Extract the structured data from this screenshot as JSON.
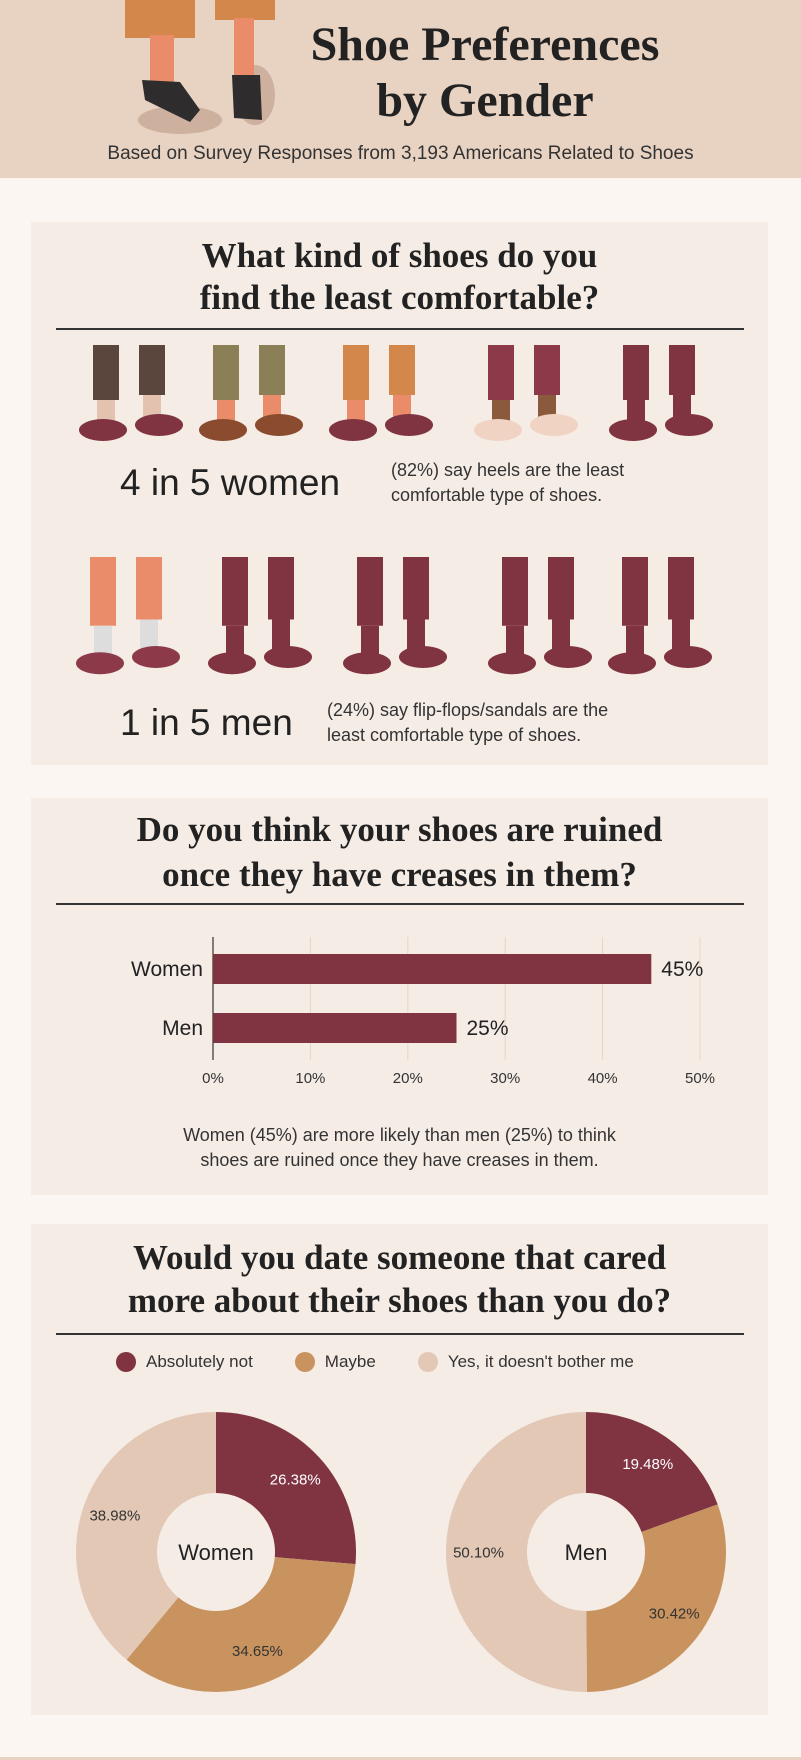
{
  "header": {
    "title_line1": "Shoe Preferences",
    "title_line2": "by Gender",
    "subtitle": "Based on Survey Responses from 3,193 Americans Related to Shoes"
  },
  "colors": {
    "burgundy": "#803341",
    "tan": "#C9935F",
    "light": "#E2C8B5",
    "card": "#F5ECE6",
    "page": "#FBF6F2",
    "header": "#E8D3C3"
  },
  "section1": {
    "title_line1": "What kind of shoes do you",
    "title_line2": "find the least comfortable?",
    "women": {
      "stat": "4 in 5 women",
      "desc_line1": "(82%) say heels are the least",
      "desc_line2": "comfortable type of shoes."
    },
    "men": {
      "stat": "1 in 5 men",
      "desc_line1": "(24%) say flip-flops/sandals are the",
      "desc_line2": "least comfortable type of shoes."
    }
  },
  "section2": {
    "title_line1": "Do you think your shoes are ruined",
    "title_line2": "once they have creases in them?",
    "caption_line1": "Women (45%) are more likely than men (25%) to think",
    "caption_line2": "shoes are ruined once they have creases in them."
  },
  "section3": {
    "title_line1": "Would you date someone that cared",
    "title_line2": "more about their shoes than you do?"
  },
  "chart_data": [
    {
      "type": "bar",
      "orientation": "horizontal",
      "categories": [
        "Women",
        "Men"
      ],
      "values": [
        45,
        25
      ],
      "data_labels": [
        "45%",
        "25%"
      ],
      "xlim": [
        0,
        50
      ],
      "ticks": [
        "0%",
        "10%",
        "20%",
        "30%",
        "40%",
        "50%"
      ],
      "grid": true,
      "color": "#803341"
    },
    {
      "type": "pie",
      "donut": true,
      "legend": [
        "Absolutely not",
        "Maybe",
        "Yes, it doesn't bother me"
      ],
      "legend_placement": "top",
      "colors": [
        "#803341",
        "#C9935F",
        "#E2C8B5"
      ],
      "charts": [
        {
          "center_label": "Women",
          "values": [
            26.38,
            34.65,
            38.98
          ],
          "labels": [
            "26.38%",
            "34.65%",
            "38.98%"
          ]
        },
        {
          "center_label": "Men",
          "values": [
            19.48,
            30.42,
            50.1
          ],
          "labels": [
            "19.48%",
            "30.42%",
            "50.10%"
          ]
        }
      ]
    }
  ]
}
